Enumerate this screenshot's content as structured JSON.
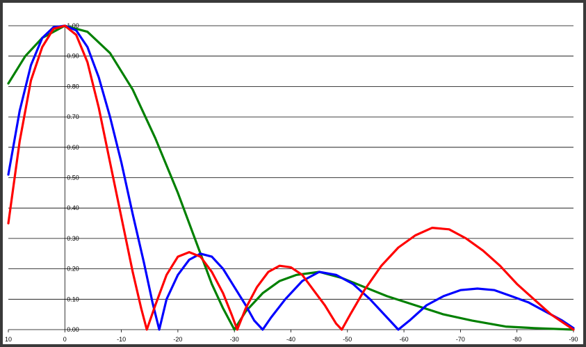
{
  "chart_data": {
    "type": "line",
    "title": "",
    "xlabel": "",
    "ylabel": "",
    "xlim": [
      10,
      -90
    ],
    "ylim": [
      0,
      1
    ],
    "grid": "horizontal",
    "x_ticks": [
      "10",
      "0",
      "-10",
      "-20",
      "-30",
      "-40",
      "-50",
      "-60",
      "-70",
      "-80",
      "-90"
    ],
    "y_ticks": [
      "0.00",
      "0.10",
      "0.20",
      "0.30",
      "0.40",
      "0.50",
      "0.60",
      "0.70",
      "0.80",
      "0.90",
      "1.00"
    ],
    "series": [
      {
        "color": "#008000",
        "points": [
          [
            10,
            0.81
          ],
          [
            7,
            0.9
          ],
          [
            4,
            0.96
          ],
          [
            0,
            1.0
          ],
          [
            -4,
            0.98
          ],
          [
            -8,
            0.91
          ],
          [
            -12,
            0.79
          ],
          [
            -16,
            0.63
          ],
          [
            -20,
            0.45
          ],
          [
            -23,
            0.3
          ],
          [
            -26,
            0.15
          ],
          [
            -28,
            0.07
          ],
          [
            -30,
            0.0
          ],
          [
            -32,
            0.06
          ],
          [
            -35,
            0.12
          ],
          [
            -38,
            0.16
          ],
          [
            -41,
            0.18
          ],
          [
            -45,
            0.19
          ],
          [
            -49,
            0.17
          ],
          [
            -53,
            0.14
          ],
          [
            -57,
            0.11
          ],
          [
            -62,
            0.08
          ],
          [
            -67,
            0.05
          ],
          [
            -72,
            0.03
          ],
          [
            -78,
            0.01
          ],
          [
            -83,
            0.005
          ],
          [
            -90,
            0.0
          ]
        ]
      },
      {
        "color": "#0000ff",
        "points": [
          [
            10,
            0.51
          ],
          [
            8,
            0.72
          ],
          [
            6,
            0.87
          ],
          [
            4,
            0.96
          ],
          [
            2,
            0.995
          ],
          [
            0,
            1.0
          ],
          [
            -2,
            0.985
          ],
          [
            -4,
            0.93
          ],
          [
            -6,
            0.83
          ],
          [
            -8,
            0.7
          ],
          [
            -10,
            0.55
          ],
          [
            -12,
            0.38
          ],
          [
            -14,
            0.22
          ],
          [
            -15.5,
            0.09
          ],
          [
            -16.7,
            0.0
          ],
          [
            -18,
            0.1
          ],
          [
            -20,
            0.18
          ],
          [
            -22,
            0.23
          ],
          [
            -24,
            0.25
          ],
          [
            -26,
            0.24
          ],
          [
            -28,
            0.2
          ],
          [
            -30,
            0.14
          ],
          [
            -32,
            0.08
          ],
          [
            -33.5,
            0.03
          ],
          [
            -35,
            0.0
          ],
          [
            -36.5,
            0.04
          ],
          [
            -39,
            0.1
          ],
          [
            -42,
            0.16
          ],
          [
            -45,
            0.19
          ],
          [
            -48,
            0.18
          ],
          [
            -51,
            0.15
          ],
          [
            -54,
            0.1
          ],
          [
            -57,
            0.04
          ],
          [
            -59,
            0.0
          ],
          [
            -61,
            0.03
          ],
          [
            -64,
            0.08
          ],
          [
            -67,
            0.11
          ],
          [
            -70,
            0.13
          ],
          [
            -73,
            0.135
          ],
          [
            -76,
            0.13
          ],
          [
            -79,
            0.11
          ],
          [
            -82,
            0.09
          ],
          [
            -85,
            0.06
          ],
          [
            -88,
            0.03
          ],
          [
            -90,
            0.005
          ]
        ]
      },
      {
        "color": "#ff0000",
        "points": [
          [
            10,
            0.35
          ],
          [
            8,
            0.62
          ],
          [
            6,
            0.82
          ],
          [
            4,
            0.93
          ],
          [
            2,
            0.99
          ],
          [
            0,
            1.0
          ],
          [
            -2,
            0.97
          ],
          [
            -4,
            0.88
          ],
          [
            -6,
            0.73
          ],
          [
            -8,
            0.55
          ],
          [
            -10,
            0.37
          ],
          [
            -12,
            0.19
          ],
          [
            -13.5,
            0.07
          ],
          [
            -14.5,
            0.0
          ],
          [
            -16,
            0.08
          ],
          [
            -18,
            0.18
          ],
          [
            -20,
            0.24
          ],
          [
            -22,
            0.255
          ],
          [
            -24,
            0.24
          ],
          [
            -26,
            0.19
          ],
          [
            -28,
            0.12
          ],
          [
            -29.5,
            0.05
          ],
          [
            -30.5,
            0.0
          ],
          [
            -32,
            0.07
          ],
          [
            -34,
            0.14
          ],
          [
            -36,
            0.19
          ],
          [
            -38,
            0.21
          ],
          [
            -40,
            0.205
          ],
          [
            -42,
            0.18
          ],
          [
            -44,
            0.13
          ],
          [
            -46,
            0.08
          ],
          [
            -48,
            0.02
          ],
          [
            -49,
            0.0
          ],
          [
            -50.5,
            0.05
          ],
          [
            -53,
            0.13
          ],
          [
            -56,
            0.21
          ],
          [
            -59,
            0.27
          ],
          [
            -62,
            0.31
          ],
          [
            -65,
            0.335
          ],
          [
            -68,
            0.33
          ],
          [
            -71,
            0.3
          ],
          [
            -74,
            0.26
          ],
          [
            -77,
            0.21
          ],
          [
            -80,
            0.15
          ],
          [
            -83,
            0.1
          ],
          [
            -86,
            0.05
          ],
          [
            -88,
            0.025
          ],
          [
            -90,
            0.0
          ]
        ]
      }
    ]
  }
}
